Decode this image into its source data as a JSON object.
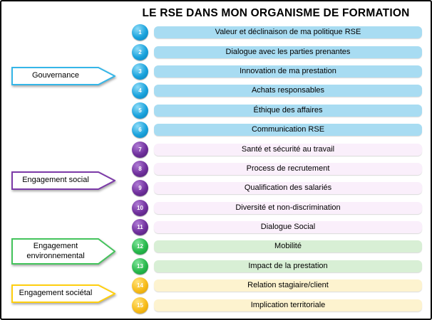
{
  "title": "LE RSE DANS MON ORGANISME DE FORMATION",
  "groups": [
    {
      "name": "gouvernance",
      "label": "Gouvernance",
      "accent": "#35b6e8",
      "circle_light": "#8fdcf8",
      "circle": "#1aa3dd",
      "circle_dark": "#0d7fb5",
      "bar": "#a8dcf2"
    },
    {
      "name": "engagement-social",
      "label": "Engagement social",
      "accent": "#7c3aa8",
      "circle_light": "#b07cd6",
      "circle": "#6f2f9c",
      "circle_dark": "#4c1d70",
      "bar": "#faeffb"
    },
    {
      "name": "engagement-environnemental",
      "label": "Engagement environnemental",
      "accent": "#44c45c",
      "circle_light": "#7fe39a",
      "circle": "#28b94c",
      "circle_dark": "#148f35",
      "bar": "#d8efd5"
    },
    {
      "name": "engagement-societal",
      "label": "Engagement sociétal",
      "accent": "#ffcf0f",
      "circle_light": "#ffe27a",
      "circle": "#f7bc1a",
      "circle_dark": "#d89a00",
      "bar": "#fdf3cf"
    }
  ],
  "items": [
    {
      "num": "1",
      "label": "Valeur et déclinaison de ma politique RSE",
      "group": 0
    },
    {
      "num": "2",
      "label": "Dialogue avec les parties prenantes",
      "group": 0
    },
    {
      "num": "3",
      "label": "Innovation de ma prestation",
      "group": 0
    },
    {
      "num": "4",
      "label": "Achats responsables",
      "group": 0
    },
    {
      "num": "5",
      "label": "Éthique des affaires",
      "group": 0
    },
    {
      "num": "6",
      "label": "Communication RSE",
      "group": 0
    },
    {
      "num": "7",
      "label": "Santé et sécurité au travail",
      "group": 1
    },
    {
      "num": "8",
      "label": "Process de recrutement",
      "group": 1
    },
    {
      "num": "9",
      "label": "Qualification des salariés",
      "group": 1
    },
    {
      "num": "10",
      "label": "Diversité et non-discrimination",
      "group": 1
    },
    {
      "num": "11",
      "label": "Dialogue Social",
      "group": 1
    },
    {
      "num": "12",
      "label": "Mobilité",
      "group": 2
    },
    {
      "num": "13",
      "label": "Impact de la prestation",
      "group": 2
    },
    {
      "num": "14",
      "label": "Relation stagiaire/client",
      "group": 3
    },
    {
      "num": "15",
      "label": "Implication territoriale",
      "group": 3
    }
  ]
}
